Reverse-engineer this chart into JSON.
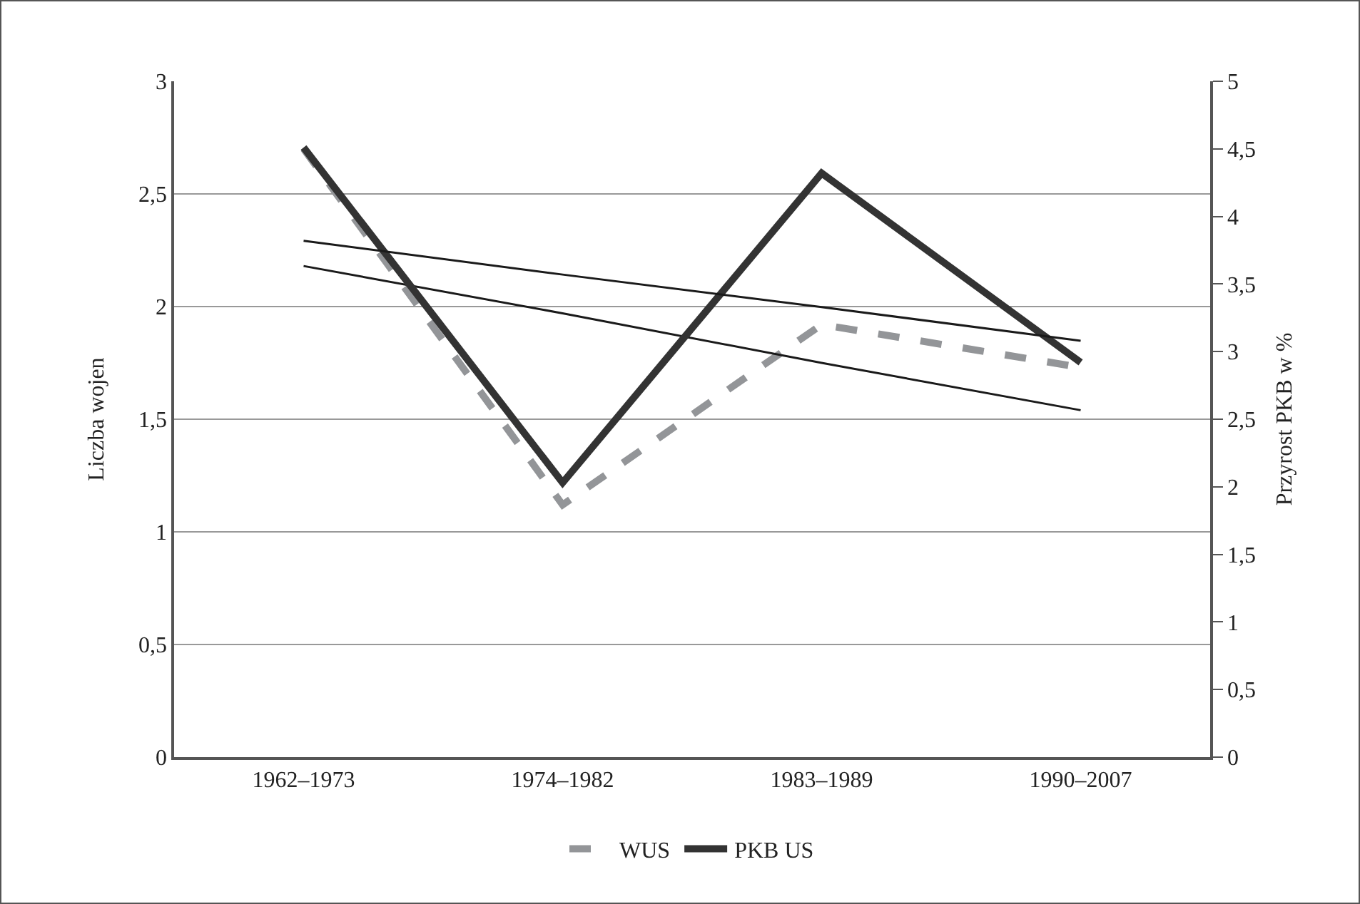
{
  "chart_data": {
    "type": "line",
    "ylabel": "Liczba wojen",
    "y2label": "Przyrost PKB w %",
    "categories": [
      "1962–1973",
      "1974–1982",
      "1983–1989",
      "1990–2007"
    ],
    "series": [
      {
        "name": "WUS",
        "color": "#939598",
        "values": [
          2.7,
          1.12,
          1.92,
          1.73
        ],
        "line_style": "dashed"
      },
      {
        "name": "PKB US",
        "color": "#333333",
        "values": [
          4.51,
          2.03,
          4.32,
          2.92
        ],
        "axis": "y2",
        "line_style": "solid"
      },
      {
        "color": "#1a1a1a",
        "values": [
          2.18,
          1.97,
          1.75,
          1.54
        ],
        "line_style": "solid"
      },
      {
        "color": "#1a1a1a",
        "values": [
          3.82,
          3.57,
          3.33,
          3.08
        ],
        "axis": "y2",
        "line_style": "solid"
      }
    ],
    "ylim": [
      0,
      3
    ],
    "yticks": [
      0,
      {
        "value": 0.5,
        "label": "0,5"
      },
      1,
      {
        "value": 1.5,
        "label": "1,5"
      },
      2,
      {
        "value": 2.5,
        "label": "2,5"
      },
      3
    ],
    "y2lim": [
      0,
      5
    ],
    "y2ticks": [
      0,
      {
        "value": 0.5,
        "label": "0,5"
      },
      1,
      {
        "value": 1.5,
        "label": "1,5"
      },
      2,
      {
        "value": 2.5,
        "label": "2,5"
      },
      3,
      {
        "value": 3.5,
        "label": "3,5"
      },
      4,
      {
        "value": 4.5,
        "label": "4,5"
      },
      5
    ],
    "grid": "y",
    "legend": "bottom",
    "marker": "none"
  }
}
